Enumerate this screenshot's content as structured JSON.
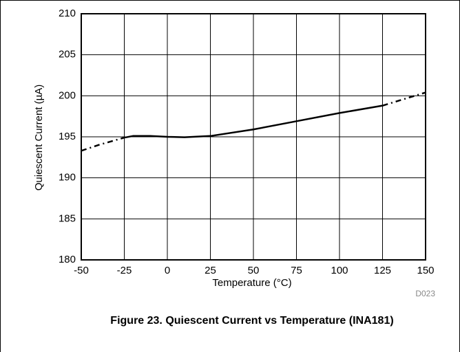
{
  "chart_data": {
    "type": "line",
    "ylabel": "Quiescent Current (µA)",
    "xlabel": "Temperature (°C)",
    "figure_id": "D023",
    "caption": "Figure 23. Quiescent Current vs Temperature (INA181)",
    "x": [
      -50,
      -40,
      -25,
      -20,
      -10,
      0,
      10,
      25,
      50,
      75,
      100,
      125,
      137.5,
      150
    ],
    "series": [
      {
        "color": "#000000",
        "dash": true,
        "values": [
          193.3,
          194.0,
          194.9,
          null,
          null,
          null,
          null,
          null,
          null,
          null,
          null,
          198.8,
          199.6,
          200.4
        ]
      },
      {
        "color": "#000000",
        "dash": false,
        "values": [
          null,
          null,
          194.9,
          195.1,
          195.1,
          195.0,
          194.95,
          195.1,
          195.9,
          196.9,
          197.9,
          198.8,
          null,
          null
        ]
      }
    ],
    "xlim": [
      -50,
      150
    ],
    "xticks": [
      -50,
      -25,
      0,
      25,
      50,
      75,
      100,
      125,
      150
    ],
    "ylim": [
      180,
      210
    ],
    "yticks": [
      180,
      185,
      190,
      195,
      200,
      205,
      210
    ],
    "grid": true
  }
}
